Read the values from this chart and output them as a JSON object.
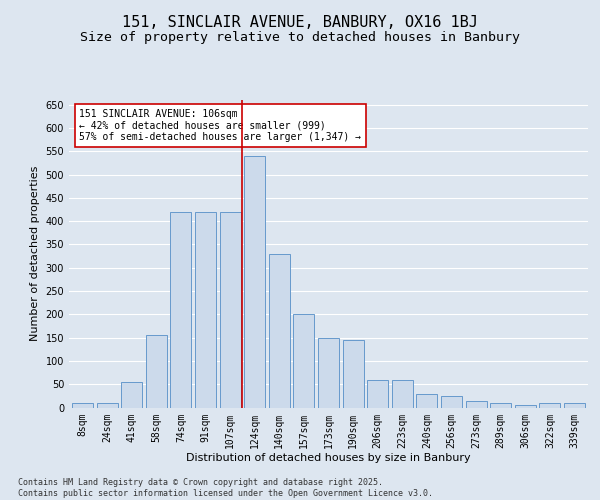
{
  "title1": "151, SINCLAIR AVENUE, BANBURY, OX16 1BJ",
  "title2": "Size of property relative to detached houses in Banbury",
  "xlabel": "Distribution of detached houses by size in Banbury",
  "ylabel": "Number of detached properties",
  "categories": [
    "8sqm",
    "24sqm",
    "41sqm",
    "58sqm",
    "74sqm",
    "91sqm",
    "107sqm",
    "124sqm",
    "140sqm",
    "157sqm",
    "173sqm",
    "190sqm",
    "206sqm",
    "223sqm",
    "240sqm",
    "256sqm",
    "273sqm",
    "289sqm",
    "306sqm",
    "322sqm",
    "339sqm"
  ],
  "values": [
    10,
    10,
    55,
    155,
    420,
    420,
    420,
    540,
    330,
    200,
    150,
    145,
    60,
    60,
    30,
    25,
    15,
    10,
    5,
    10,
    10
  ],
  "bar_color": "#ccdaeb",
  "bar_edge_color": "#6699cc",
  "vline_x_index": 6.5,
  "vline_color": "#cc0000",
  "annotation_text": "151 SINCLAIR AVENUE: 106sqm\n← 42% of detached houses are smaller (999)\n57% of semi-detached houses are larger (1,347) →",
  "annotation_box_color": "#ffffff",
  "annotation_box_edge": "#cc0000",
  "ylim": [
    0,
    660
  ],
  "yticks": [
    0,
    50,
    100,
    150,
    200,
    250,
    300,
    350,
    400,
    450,
    500,
    550,
    600,
    650
  ],
  "bg_color": "#dde6f0",
  "plot_bg_color": "#dde6f0",
  "grid_color": "#ffffff",
  "footer_text": "Contains HM Land Registry data © Crown copyright and database right 2025.\nContains public sector information licensed under the Open Government Licence v3.0.",
  "title_fontsize": 11,
  "subtitle_fontsize": 9.5,
  "axis_label_fontsize": 8,
  "tick_fontsize": 7,
  "annotation_fontsize": 7,
  "footer_fontsize": 6
}
